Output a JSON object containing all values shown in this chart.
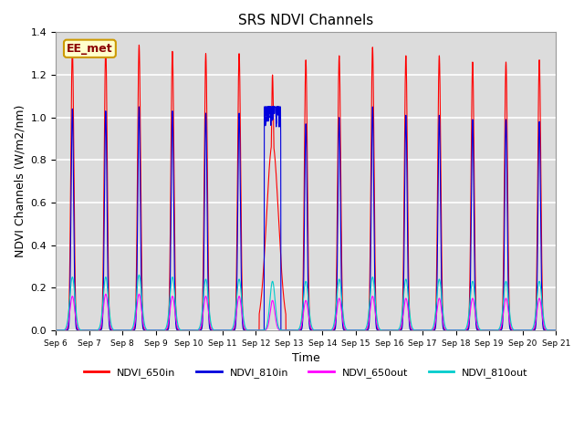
{
  "title": "SRS NDVI Channels",
  "xlabel": "Time",
  "ylabel": "NDVI Channels (W/m2/nm)",
  "ylim": [
    0,
    1.4
  ],
  "background_color": "#dcdcdc",
  "grid_color": "white",
  "series": {
    "NDVI_650in": {
      "color": "#ff0000"
    },
    "NDVI_810in": {
      "color": "#0000dd"
    },
    "NDVI_650out": {
      "color": "#ff00ff"
    },
    "NDVI_810out": {
      "color": "#00cccc"
    }
  },
  "day_peaks_650in": [
    1.32,
    1.33,
    1.34,
    1.31,
    1.3,
    1.3,
    1.2,
    1.27,
    1.29,
    1.33,
    1.29,
    1.29,
    1.26,
    1.26,
    1.27
  ],
  "day_peaks_810in": [
    1.04,
    1.03,
    1.05,
    1.03,
    1.02,
    1.02,
    1.01,
    0.97,
    1.0,
    1.05,
    1.01,
    1.01,
    0.99,
    0.99,
    0.98
  ],
  "day_peaks_650out": [
    0.16,
    0.17,
    0.17,
    0.16,
    0.16,
    0.16,
    0.14,
    0.14,
    0.15,
    0.16,
    0.15,
    0.15,
    0.15,
    0.15,
    0.15
  ],
  "day_peaks_810out": [
    0.25,
    0.25,
    0.26,
    0.25,
    0.24,
    0.24,
    0.23,
    0.23,
    0.24,
    0.25,
    0.24,
    0.24,
    0.23,
    0.23,
    0.23
  ],
  "legend_label": "EE_met",
  "tick_labels": [
    "Sep 6",
    "Sep 7",
    "Sep 8",
    "Sep 9",
    "Sep 10",
    "Sep 11",
    "Sep 12",
    "Sep 13",
    "Sep 14",
    "Sep 15",
    "Sep 16",
    "Sep 17",
    "Sep 18",
    "Sep 19",
    "Sep 20",
    "Sep 21"
  ]
}
